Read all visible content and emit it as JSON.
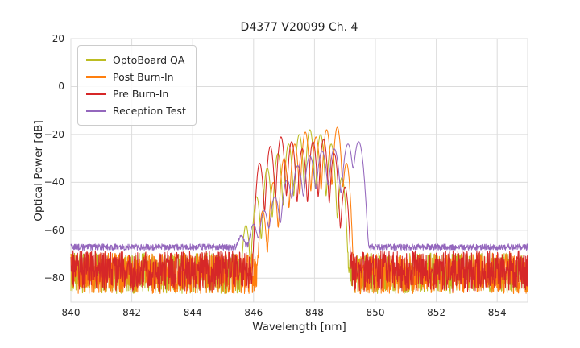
{
  "chart_data": {
    "type": "line",
    "title": "D4377 V20099 Ch. 4",
    "xlabel": "Wavelength [nm]",
    "ylabel": "Optical Power [dB]",
    "xlim": [
      840,
      855
    ],
    "ylim": [
      -90,
      20
    ],
    "xticks": [
      840,
      842,
      844,
      846,
      848,
      850,
      852,
      854
    ],
    "yticks": [
      20,
      0,
      -20,
      -40,
      -60,
      -80
    ],
    "xtick_labels": [
      "840",
      "842",
      "844",
      "846",
      "848",
      "850",
      "852",
      "854"
    ],
    "ytick_labels": [
      "20",
      "0",
      "−20",
      "−40",
      "−60",
      "−80"
    ],
    "grid": true,
    "grid_color": "#dcdcdc",
    "background_color": "#ffffff",
    "legend_position": "upper left",
    "series": [
      {
        "name": "OptoBoard QA",
        "color": "#bcbd22",
        "baseline_db": -78,
        "noise_db": 8.5,
        "mode_sigma_nm": 0.05,
        "modes": [
          [
            845.75,
            -58
          ],
          [
            846.1,
            -46
          ],
          [
            846.45,
            -34
          ],
          [
            846.8,
            -28
          ],
          [
            847.15,
            -24
          ],
          [
            847.5,
            -20
          ],
          [
            847.85,
            -18
          ],
          [
            848.2,
            -20
          ],
          [
            848.55,
            -24
          ],
          [
            848.9,
            -38
          ]
        ]
      },
      {
        "name": "Post Burn-In",
        "color": "#ff7f0e",
        "baseline_db": -78,
        "noise_db": 8.5,
        "mode_sigma_nm": 0.05,
        "modes": [
          [
            846.3,
            -52
          ],
          [
            846.65,
            -40
          ],
          [
            847.0,
            -30
          ],
          [
            847.35,
            -24
          ],
          [
            847.7,
            -19
          ],
          [
            848.05,
            -21
          ],
          [
            848.4,
            -18
          ],
          [
            848.75,
            -17
          ],
          [
            849.05,
            -32
          ]
        ]
      },
      {
        "name": "Pre Burn-In",
        "color": "#d62728",
        "baseline_db": -77,
        "noise_db": 8.5,
        "mode_sigma_nm": 0.05,
        "modes": [
          [
            846.2,
            -32
          ],
          [
            846.55,
            -25
          ],
          [
            846.9,
            -21
          ],
          [
            847.25,
            -23
          ],
          [
            847.6,
            -26
          ],
          [
            847.95,
            -23
          ],
          [
            848.3,
            -22
          ],
          [
            848.65,
            -28
          ],
          [
            849.0,
            -42
          ]
        ]
      },
      {
        "name": "Reception Test",
        "color": "#9467bd",
        "baseline_db": -67,
        "noise_db": 1.3,
        "mode_sigma_nm": 0.07,
        "modes": [
          [
            845.6,
            -64
          ],
          [
            846.0,
            -58
          ],
          [
            846.35,
            -52
          ],
          [
            846.7,
            -46
          ],
          [
            847.1,
            -39
          ],
          [
            847.45,
            -33
          ],
          [
            847.85,
            -29
          ],
          [
            848.25,
            -27
          ],
          [
            848.65,
            -26
          ],
          [
            849.1,
            -24
          ],
          [
            849.45,
            -23
          ]
        ]
      }
    ]
  }
}
